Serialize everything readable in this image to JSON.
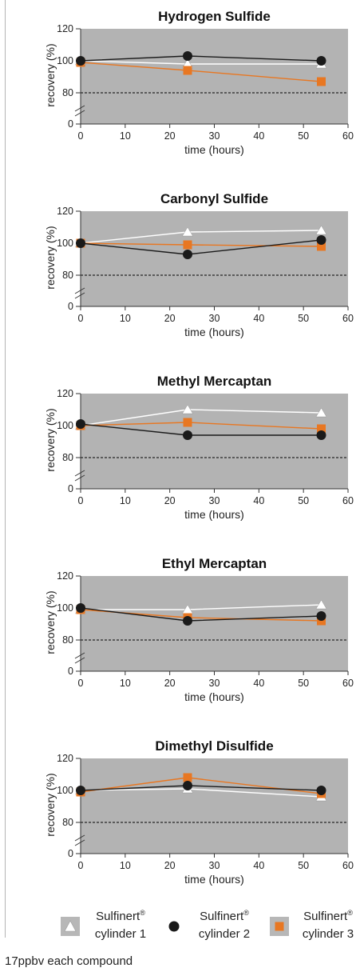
{
  "legend": [
    {
      "name": "Sulfinert",
      "mark": "®",
      "line2": "cylinder 1",
      "marker": "triangle",
      "color": "#ffffff"
    },
    {
      "name": "Sulfinert",
      "mark": "®",
      "line2": "cylinder 2",
      "marker": "circle",
      "color": "#1a1a1a"
    },
    {
      "name": "Sulfinert",
      "mark": "®",
      "line2": "cylinder 3",
      "marker": "square",
      "color": "#e87722"
    }
  ],
  "footnote": "17ppbv each compound",
  "colors": {
    "plot_bg": "#b3b3b3",
    "cyl1": "#ffffff",
    "cyl2": "#1a1a1a",
    "cyl3": "#e87722",
    "reference": "#000000"
  },
  "chart_data": [
    {
      "type": "line",
      "title": "Hydrogen Sulfide",
      "xlabel": "time (hours)",
      "ylabel": "recovery (%)",
      "xlim": [
        0,
        60
      ],
      "ylim": [
        0,
        120
      ],
      "xticks": [
        0,
        10,
        20,
        30,
        40,
        50,
        60
      ],
      "yticks": [
        0,
        80,
        100,
        120
      ],
      "y_axis_break": true,
      "reference_line": 80,
      "grid": false,
      "x": [
        0,
        24,
        54
      ],
      "series": [
        {
          "name": "Sulfinert® cylinder 1",
          "values": [
            100,
            98,
            98
          ]
        },
        {
          "name": "Sulfinert® cylinder 2",
          "values": [
            100,
            103,
            100
          ]
        },
        {
          "name": "Sulfinert® cylinder 3",
          "values": [
            99,
            94,
            87
          ]
        }
      ]
    },
    {
      "type": "line",
      "title": "Carbonyl Sulfide",
      "xlabel": "time (hours)",
      "ylabel": "recovery (%)",
      "xlim": [
        0,
        60
      ],
      "ylim": [
        0,
        120
      ],
      "xticks": [
        0,
        10,
        20,
        30,
        40,
        50,
        60
      ],
      "yticks": [
        0,
        80,
        100,
        120
      ],
      "y_axis_break": true,
      "reference_line": 80,
      "grid": false,
      "x": [
        0,
        24,
        54
      ],
      "series": [
        {
          "name": "Sulfinert® cylinder 1",
          "values": [
            100,
            107,
            108
          ]
        },
        {
          "name": "Sulfinert® cylinder 2",
          "values": [
            100,
            93,
            102
          ]
        },
        {
          "name": "Sulfinert® cylinder 3",
          "values": [
            100,
            99,
            98
          ]
        }
      ]
    },
    {
      "type": "line",
      "title": "Methyl Mercaptan",
      "xlabel": "time (hours)",
      "ylabel": "recovery (%)",
      "xlim": [
        0,
        60
      ],
      "ylim": [
        0,
        120
      ],
      "xticks": [
        0,
        10,
        20,
        30,
        40,
        50,
        60
      ],
      "yticks": [
        0,
        80,
        100,
        120
      ],
      "y_axis_break": true,
      "reference_line": 80,
      "grid": false,
      "x": [
        0,
        24,
        54
      ],
      "series": [
        {
          "name": "Sulfinert® cylinder 1",
          "values": [
            100,
            110,
            108
          ]
        },
        {
          "name": "Sulfinert® cylinder 2",
          "values": [
            101,
            94,
            94
          ]
        },
        {
          "name": "Sulfinert® cylinder 3",
          "values": [
            100,
            102,
            98
          ]
        }
      ]
    },
    {
      "type": "line",
      "title": "Ethyl Mercaptan",
      "xlabel": "time (hours)",
      "ylabel": "recovery (%)",
      "xlim": [
        0,
        60
      ],
      "ylim": [
        0,
        120
      ],
      "xticks": [
        0,
        10,
        20,
        30,
        40,
        50,
        60
      ],
      "yticks": [
        0,
        80,
        100,
        120
      ],
      "y_axis_break": true,
      "reference_line": 80,
      "grid": false,
      "x": [
        0,
        24,
        54
      ],
      "series": [
        {
          "name": "Sulfinert® cylinder 1",
          "values": [
            99,
            99,
            102
          ]
        },
        {
          "name": "Sulfinert® cylinder 2",
          "values": [
            100,
            92,
            95
          ]
        },
        {
          "name": "Sulfinert® cylinder 3",
          "values": [
            99,
            94,
            92
          ]
        }
      ]
    },
    {
      "type": "line",
      "title": "Dimethyl Disulfide",
      "xlabel": "time (hours)",
      "ylabel": "recovery (%)",
      "xlim": [
        0,
        60
      ],
      "ylim": [
        0,
        120
      ],
      "xticks": [
        0,
        10,
        20,
        30,
        40,
        50,
        60
      ],
      "yticks": [
        0,
        80,
        100,
        120
      ],
      "y_axis_break": true,
      "reference_line": 80,
      "grid": false,
      "x": [
        0,
        24,
        54
      ],
      "series": [
        {
          "name": "Sulfinert® cylinder 1",
          "values": [
            100,
            101,
            96
          ]
        },
        {
          "name": "Sulfinert® cylinder 2",
          "values": [
            100,
            103,
            100
          ]
        },
        {
          "name": "Sulfinert® cylinder 3",
          "values": [
            99,
            108,
            98
          ]
        }
      ]
    }
  ]
}
